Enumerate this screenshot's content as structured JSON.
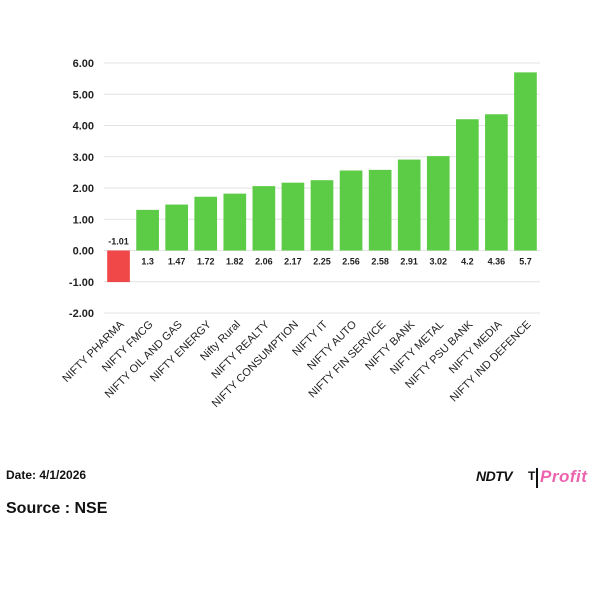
{
  "chart_data": {
    "type": "bar",
    "categories": [
      "NIFTY PHARMA",
      "NIFTY FMCG",
      "NIFTY OIL AND GAS",
      "NIFTY ENERGY",
      "Nifty Rural",
      "NIFTY REALTY",
      "NIFTY CONSUMPTION",
      "NIFTY IT",
      "NIFTY AUTO",
      "NIFTY FIN SERVICE",
      "NIFTY BANK",
      "NIFTY METAL",
      "NIFTY PSU BANK",
      "NIFTY MEDIA",
      "NIFTY IND DEFENCE"
    ],
    "values": [
      -1.01,
      1.3,
      1.47,
      1.72,
      1.82,
      2.06,
      2.17,
      2.25,
      2.56,
      2.58,
      2.91,
      3.02,
      4.2,
      4.36,
      5.7
    ],
    "data_labels": [
      "-1.01",
      "1.3",
      "1.47",
      "1.72",
      "1.82",
      "2.06",
      "2.17",
      "2.25",
      "2.56",
      "2.58",
      "2.91",
      "3.02",
      "4.2",
      "4.36",
      "5.7"
    ],
    "yticks": [
      "6.00",
      "5.00",
      "4.00",
      "3.00",
      "2.00",
      "1.00",
      "0.00",
      "-1.00",
      "-2.00"
    ],
    "ylim": [
      -2,
      6
    ],
    "title": "",
    "xlabel": "",
    "ylabel": "",
    "grid": true,
    "colors": {
      "positive": "#5ccb45",
      "negative": "#f04848",
      "grid": "#e3e3e3"
    }
  },
  "footer": {
    "date": "Date: 4/1/2026",
    "source": "Source : NSE",
    "time_partial": "T",
    "brand_ndtv": "NDTV",
    "brand_profit": "Profit"
  }
}
